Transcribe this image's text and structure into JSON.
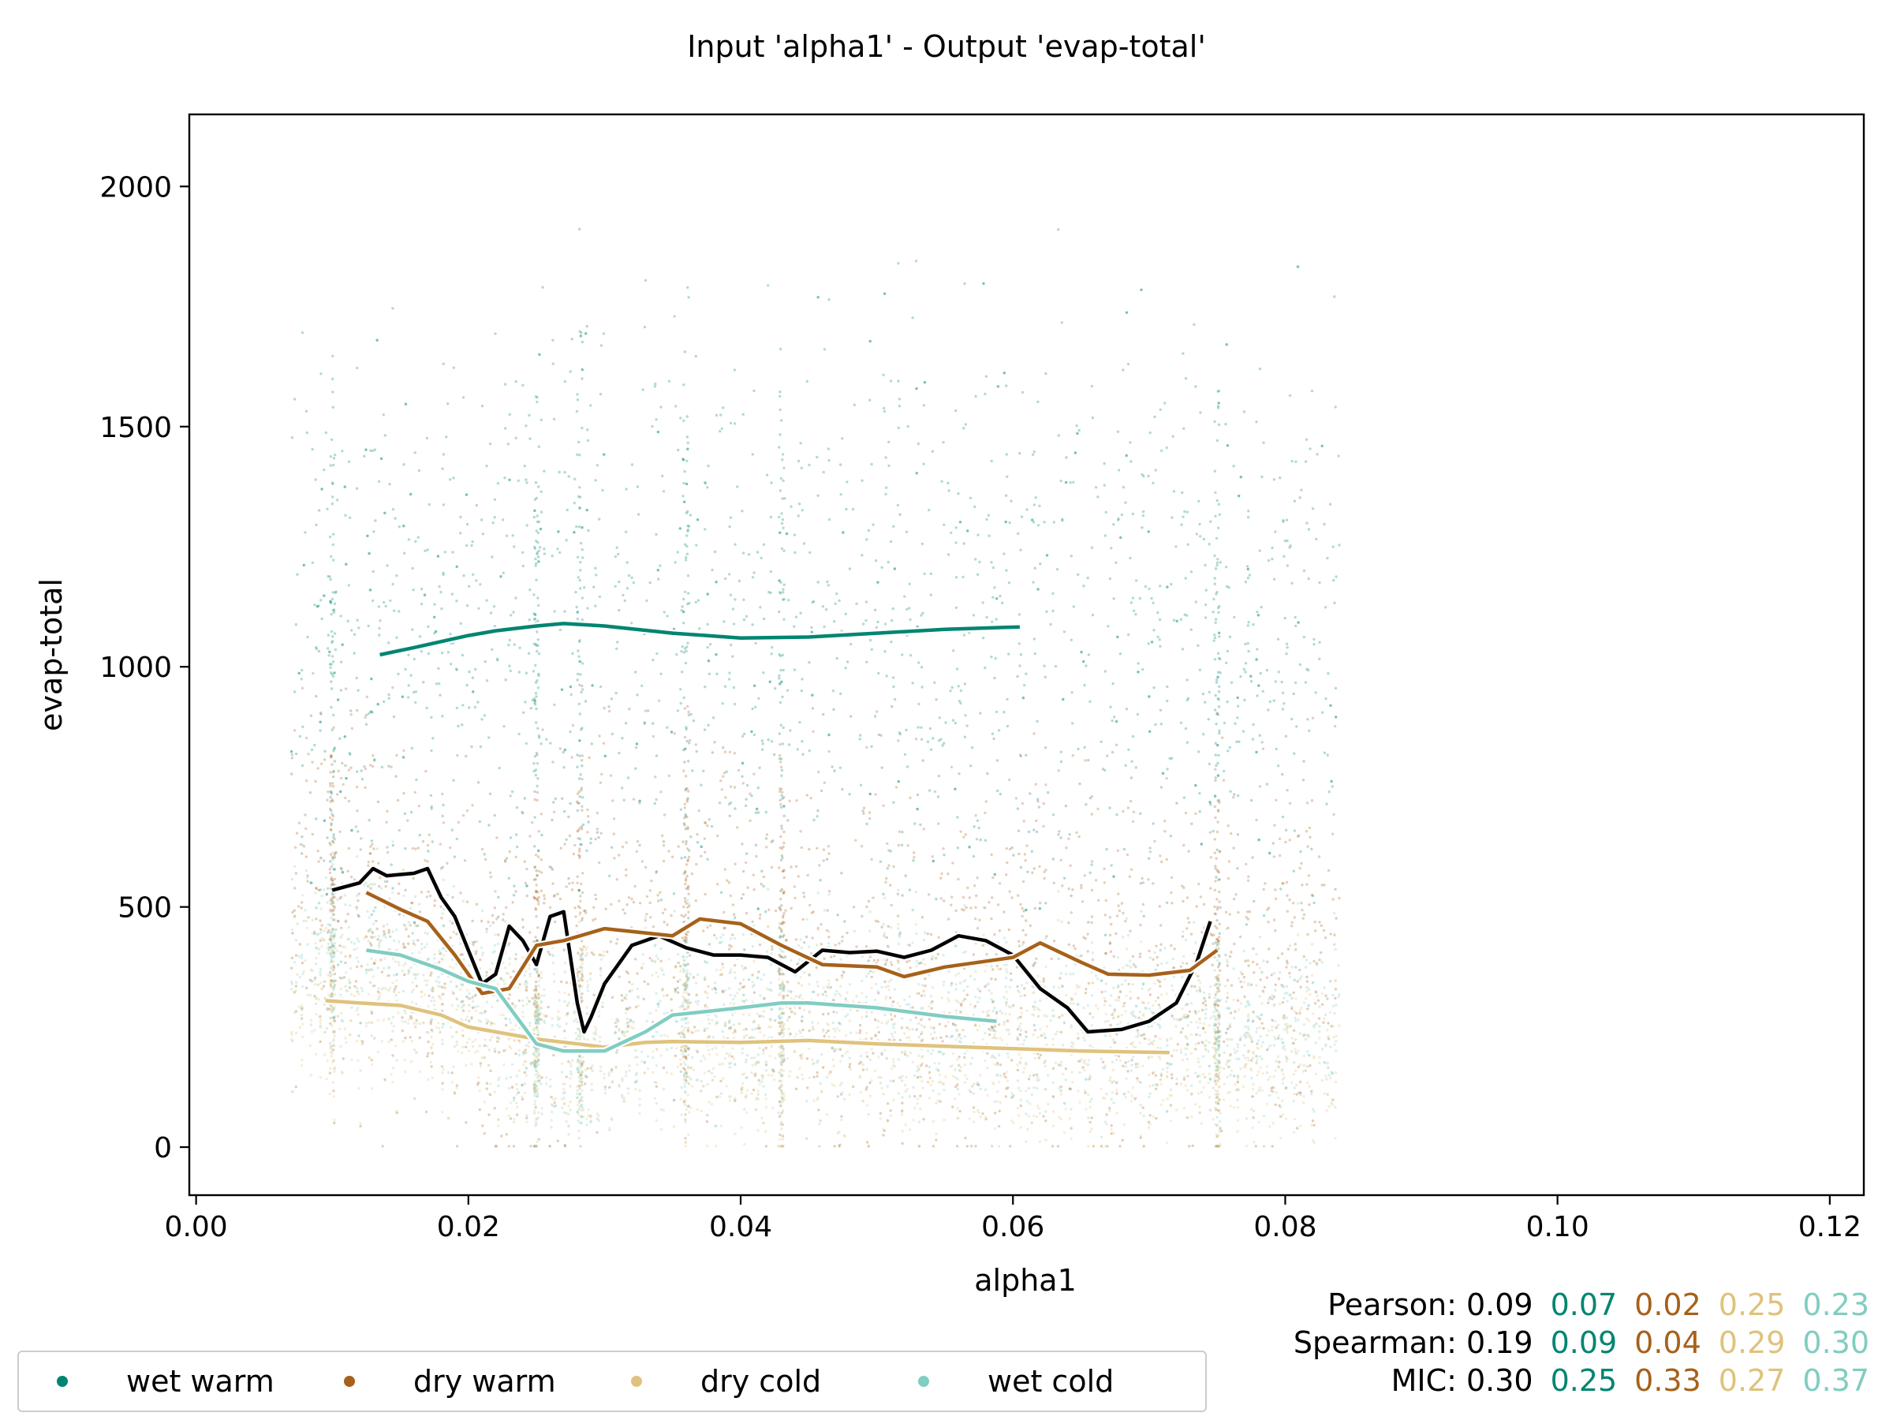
{
  "chart_data": {
    "type": "scatter",
    "title": "Input 'alpha1' - Output 'evap-total'",
    "xlabel": "alpha1",
    "ylabel": "evap-total",
    "xlim": [
      -0.0005,
      0.1225
    ],
    "ylim": [
      -100,
      2150
    ],
    "xticks": [
      0.0,
      0.02,
      0.04,
      0.06,
      0.08,
      0.1,
      0.12
    ],
    "xtick_labels": [
      "0.00",
      "0.02",
      "0.04",
      "0.06",
      "0.08",
      "0.10",
      "0.12"
    ],
    "yticks": [
      0,
      500,
      1000,
      1500,
      2000
    ],
    "ytick_labels": [
      "0",
      "500",
      "1000",
      "1500",
      "2000"
    ],
    "grid": false,
    "legend_position": "bottom-left, below plot",
    "series": [
      {
        "name": "wet warm",
        "color": "#018571",
        "smoothed_line": [
          [
            0.0135,
            1025
          ],
          [
            0.016,
            1040
          ],
          [
            0.02,
            1065
          ],
          [
            0.022,
            1075
          ],
          [
            0.025,
            1085
          ],
          [
            0.027,
            1090
          ],
          [
            0.03,
            1085
          ],
          [
            0.035,
            1070
          ],
          [
            0.04,
            1060
          ],
          [
            0.045,
            1062
          ],
          [
            0.05,
            1070
          ],
          [
            0.055,
            1078
          ],
          [
            0.0605,
            1083
          ]
        ]
      },
      {
        "name": "dry warm",
        "color": "#a6611a",
        "smoothed_line": [
          [
            0.0125,
            530
          ],
          [
            0.015,
            495
          ],
          [
            0.017,
            470
          ],
          [
            0.019,
            400
          ],
          [
            0.021,
            320
          ],
          [
            0.023,
            330
          ],
          [
            0.025,
            420
          ],
          [
            0.027,
            430
          ],
          [
            0.03,
            455
          ],
          [
            0.035,
            440
          ],
          [
            0.037,
            475
          ],
          [
            0.04,
            465
          ],
          [
            0.043,
            420
          ],
          [
            0.046,
            380
          ],
          [
            0.05,
            375
          ],
          [
            0.052,
            355
          ],
          [
            0.055,
            375
          ],
          [
            0.06,
            395
          ],
          [
            0.062,
            425
          ],
          [
            0.065,
            385
          ],
          [
            0.067,
            360
          ],
          [
            0.07,
            358
          ],
          [
            0.073,
            368
          ],
          [
            0.075,
            410
          ]
        ]
      },
      {
        "name": "dry cold",
        "color": "#dfc27d",
        "smoothed_line": [
          [
            0.0095,
            305
          ],
          [
            0.012,
            300
          ],
          [
            0.015,
            295
          ],
          [
            0.018,
            275
          ],
          [
            0.02,
            250
          ],
          [
            0.022,
            240
          ],
          [
            0.025,
            225
          ],
          [
            0.028,
            215
          ],
          [
            0.03,
            208
          ],
          [
            0.033,
            218
          ],
          [
            0.035,
            220
          ],
          [
            0.04,
            218
          ],
          [
            0.045,
            222
          ],
          [
            0.05,
            215
          ],
          [
            0.055,
            210
          ],
          [
            0.06,
            205
          ],
          [
            0.065,
            200
          ],
          [
            0.0715,
            197
          ]
        ]
      },
      {
        "name": "wet cold",
        "color": "#80cdc1",
        "smoothed_line": [
          [
            0.0125,
            410
          ],
          [
            0.015,
            400
          ],
          [
            0.018,
            370
          ],
          [
            0.02,
            345
          ],
          [
            0.022,
            330
          ],
          [
            0.025,
            215
          ],
          [
            0.027,
            200
          ],
          [
            0.03,
            200
          ],
          [
            0.033,
            240
          ],
          [
            0.035,
            275
          ],
          [
            0.04,
            290
          ],
          [
            0.043,
            300
          ],
          [
            0.045,
            300
          ],
          [
            0.05,
            290
          ],
          [
            0.055,
            272
          ],
          [
            0.0588,
            262
          ]
        ]
      }
    ],
    "overall_line": {
      "color": "#000000",
      "points": [
        [
          0.01,
          535
        ],
        [
          0.012,
          550
        ],
        [
          0.013,
          580
        ],
        [
          0.014,
          565
        ],
        [
          0.016,
          570
        ],
        [
          0.017,
          580
        ],
        [
          0.018,
          520
        ],
        [
          0.019,
          480
        ],
        [
          0.02,
          410
        ],
        [
          0.021,
          340
        ],
        [
          0.022,
          360
        ],
        [
          0.023,
          460
        ],
        [
          0.024,
          430
        ],
        [
          0.025,
          380
        ],
        [
          0.026,
          480
        ],
        [
          0.027,
          490
        ],
        [
          0.028,
          300
        ],
        [
          0.0285,
          240
        ],
        [
          0.029,
          270
        ],
        [
          0.03,
          340
        ],
        [
          0.032,
          420
        ],
        [
          0.034,
          440
        ],
        [
          0.036,
          415
        ],
        [
          0.038,
          400
        ],
        [
          0.04,
          400
        ],
        [
          0.042,
          395
        ],
        [
          0.044,
          365
        ],
        [
          0.046,
          410
        ],
        [
          0.048,
          405
        ],
        [
          0.05,
          408
        ],
        [
          0.052,
          395
        ],
        [
          0.054,
          410
        ],
        [
          0.056,
          440
        ],
        [
          0.058,
          430
        ],
        [
          0.06,
          400
        ],
        [
          0.062,
          330
        ],
        [
          0.064,
          290
        ],
        [
          0.0655,
          240
        ],
        [
          0.068,
          245
        ],
        [
          0.07,
          262
        ],
        [
          0.072,
          300
        ],
        [
          0.0735,
          385
        ],
        [
          0.0745,
          470
        ]
      ]
    },
    "stats": {
      "labels": [
        "Pearson:",
        "Spearman:",
        "MIC:"
      ],
      "overall": [
        "0.09",
        "0.19",
        "0.30"
      ],
      "wet warm": [
        "0.07",
        "0.09",
        "0.25"
      ],
      "dry warm": [
        "0.02",
        "0.04",
        "0.33"
      ],
      "dry cold": [
        "0.25",
        "0.29",
        "0.27"
      ],
      "wet cold": [
        "0.23",
        "0.30",
        "0.37"
      ]
    }
  },
  "legend": {
    "items": [
      {
        "label": "wet warm",
        "color": "#018571"
      },
      {
        "label": "dry warm",
        "color": "#a6611a"
      },
      {
        "label": "dry cold",
        "color": "#dfc27d"
      },
      {
        "label": "wet cold",
        "color": "#80cdc1"
      }
    ]
  }
}
